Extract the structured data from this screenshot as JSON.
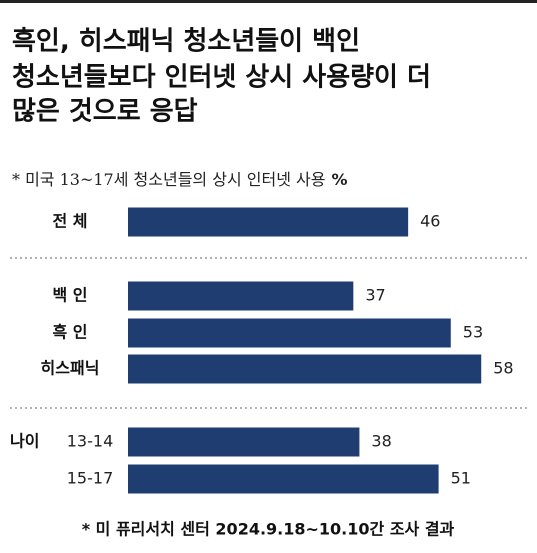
{
  "chart_data": {
    "type": "bar",
    "orientation": "horizontal",
    "title": [
      "흑인, 히스패닉 청소년들이 백인",
      "청소년들보다 인터넷 상시 사용량이 더",
      "많은 것으로 응답"
    ],
    "subtitle": "* 미국 13~17세 청소년들의 상시 인터넷 사용",
    "unit": "%",
    "categories": [
      "전 체",
      "백 인",
      "흑 인",
      "히스패닉",
      "13-14",
      "15-17"
    ],
    "group_label": "나이",
    "values": [
      46,
      37,
      53,
      58,
      38,
      51
    ],
    "color": "#1f3d70",
    "footnote": "* 미 퓨리서치 센터 2024.9.18~10.10간 조사 결과"
  }
}
